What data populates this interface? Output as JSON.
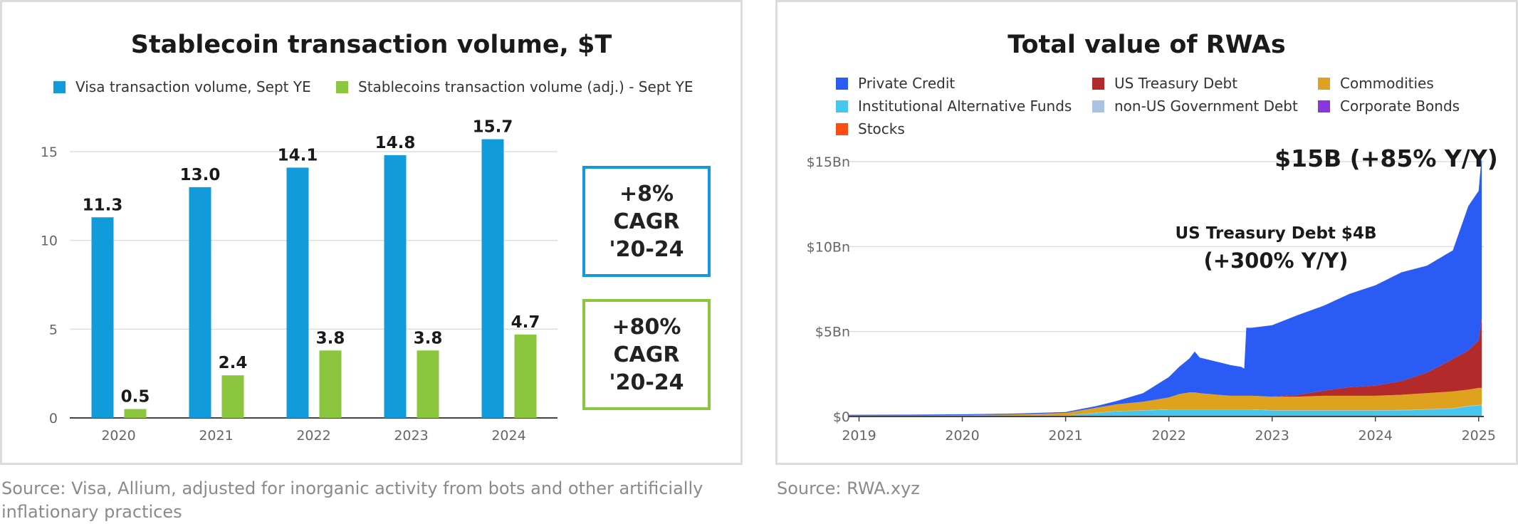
{
  "left": {
    "title": "Stablecoin transaction volume, $T",
    "legend": [
      {
        "label": "Visa transaction volume, Sept YE",
        "color": "#129bdb"
      },
      {
        "label": "Stablecoins transaction volume (adj.) - Sept YE",
        "color": "#8cc63f"
      }
    ],
    "cagr_boxes": [
      {
        "text": "+8%\nCAGR\n'20-24",
        "color": "#129bdb"
      },
      {
        "text": "+80%\nCAGR\n'20-24",
        "color": "#8cc63f"
      }
    ],
    "source": "Source: Visa, Allium, adjusted for inorganic activity from bots and other artificially inflationary practices"
  },
  "right": {
    "title": "Total value of RWAs",
    "legend": [
      {
        "label": "Private Credit",
        "color": "#2a5cf5"
      },
      {
        "label": "US Treasury Debt",
        "color": "#b22a2a"
      },
      {
        "label": "Commodities",
        "color": "#dea21f"
      },
      {
        "label": "Institutional Alternative Funds",
        "color": "#45c6ec"
      },
      {
        "label": "non-US Government Debt",
        "color": "#a9c3e3"
      },
      {
        "label": "Corporate Bonds",
        "color": "#8a35e0"
      },
      {
        "label": "Stocks",
        "color": "#fa4d12"
      }
    ],
    "annotation_total": "$15B (+85% Y/Y)",
    "annotation_ust_line1": "US Treasury Debt $4B",
    "annotation_ust_line2": "(+300% Y/Y)",
    "source": "Source: RWA.xyz"
  },
  "chart_data": [
    {
      "type": "bar",
      "title": "Stablecoin transaction volume, $T",
      "categories": [
        "2020",
        "2021",
        "2022",
        "2023",
        "2024"
      ],
      "series": [
        {
          "name": "Visa transaction volume, Sept YE",
          "values": [
            11.3,
            13.0,
            14.1,
            14.8,
            15.7
          ],
          "color": "#129bdb"
        },
        {
          "name": "Stablecoins transaction volume (adj.) - Sept YE",
          "values": [
            0.5,
            2.4,
            3.8,
            3.8,
            4.7
          ],
          "color": "#8cc63f"
        }
      ],
      "data_labels": [
        [
          "11.3",
          "13.0",
          "14.1",
          "14.8",
          "15.7"
        ],
        [
          "0.5",
          "2.4",
          "3.8",
          "3.8",
          "4.7"
        ]
      ],
      "yticks": [
        0,
        5,
        10,
        15
      ],
      "ylim": [
        0,
        17
      ],
      "grid": true,
      "legend": "top"
    },
    {
      "type": "area",
      "title": "Total value of RWAs",
      "x_ticks": [
        "2019",
        "2020",
        "2021",
        "2022",
        "2023",
        "2024",
        "2025"
      ],
      "y_ticks": [
        "$0",
        "$5Bn",
        "$10Bn",
        "$15Bn"
      ],
      "ylim_bn": [
        0,
        15
      ],
      "stacked": true,
      "grid": true,
      "legend": "top",
      "x": [
        2018.9,
        2019.5,
        2020.0,
        2020.5,
        2021.0,
        2021.3,
        2021.5,
        2021.75,
        2022.0,
        2022.1,
        2022.2,
        2022.25,
        2022.3,
        2022.4,
        2022.5,
        2022.6,
        2022.7,
        2022.73,
        2022.75,
        2022.8,
        2023.0,
        2023.25,
        2023.5,
        2023.75,
        2024.0,
        2024.25,
        2024.5,
        2024.75,
        2024.9,
        2025.0,
        2025.03
      ],
      "series": [
        {
          "name": "Institutional Alternative Funds",
          "values": [
            0.02,
            0.02,
            0.03,
            0.04,
            0.06,
            0.2,
            0.3,
            0.35,
            0.4,
            0.4,
            0.4,
            0.4,
            0.4,
            0.4,
            0.4,
            0.4,
            0.4,
            0.4,
            0.4,
            0.4,
            0.35,
            0.35,
            0.35,
            0.35,
            0.35,
            0.35,
            0.4,
            0.45,
            0.6,
            0.65,
            0.65
          ]
        },
        {
          "name": "non-US Government Debt",
          "values": [
            0,
            0,
            0,
            0,
            0,
            0.02,
            0.02,
            0.02,
            0.02,
            0.02,
            0.02,
            0.02,
            0.02,
            0.02,
            0.02,
            0.02,
            0.02,
            0.02,
            0.02,
            0.02,
            0.02,
            0.02,
            0.02,
            0.02,
            0.02,
            0.03,
            0.03,
            0.03,
            0.03,
            0.03,
            0.03
          ]
        },
        {
          "name": "Commodities",
          "values": [
            0.03,
            0.04,
            0.05,
            0.08,
            0.15,
            0.3,
            0.4,
            0.5,
            0.7,
            0.9,
            1.0,
            1.0,
            0.95,
            0.9,
            0.85,
            0.8,
            0.8,
            0.8,
            0.8,
            0.8,
            0.8,
            0.8,
            0.85,
            0.85,
            0.85,
            0.9,
            0.95,
            1.0,
            0.95,
            1.0,
            1.0
          ]
        },
        {
          "name": "US Treasury Debt",
          "values": [
            0,
            0,
            0,
            0,
            0,
            0,
            0,
            0,
            0,
            0,
            0,
            0,
            0,
            0,
            0,
            0,
            0,
            0,
            0,
            0,
            0,
            0.1,
            0.3,
            0.5,
            0.6,
            0.8,
            1.2,
            1.9,
            2.3,
            2.8,
            4.1
          ]
        },
        {
          "name": "Corporate Bonds",
          "values": [
            0,
            0,
            0,
            0,
            0,
            0,
            0,
            0,
            0,
            0,
            0,
            0,
            0,
            0,
            0,
            0,
            0,
            0,
            0,
            0,
            0,
            0,
            0,
            0,
            0,
            0,
            0,
            0,
            0,
            0,
            0
          ]
        },
        {
          "name": "Stocks",
          "values": [
            0,
            0,
            0,
            0,
            0,
            0,
            0,
            0,
            0,
            0,
            0,
            0,
            0,
            0,
            0,
            0,
            0,
            0,
            0,
            0,
            0,
            0,
            0,
            0,
            0,
            0,
            0,
            0,
            0,
            0,
            0
          ]
        },
        {
          "name": "Private Credit",
          "values": [
            0.05,
            0.05,
            0.05,
            0.05,
            0.05,
            0.1,
            0.2,
            0.5,
            1.2,
            1.6,
            2.0,
            2.4,
            2.1,
            2.0,
            1.9,
            1.8,
            1.7,
            1.6,
            4.0,
            4.0,
            4.2,
            4.7,
            5.0,
            5.5,
            5.9,
            6.4,
            6.3,
            6.4,
            8.5,
            8.8,
            9.6
          ]
        }
      ]
    }
  ]
}
